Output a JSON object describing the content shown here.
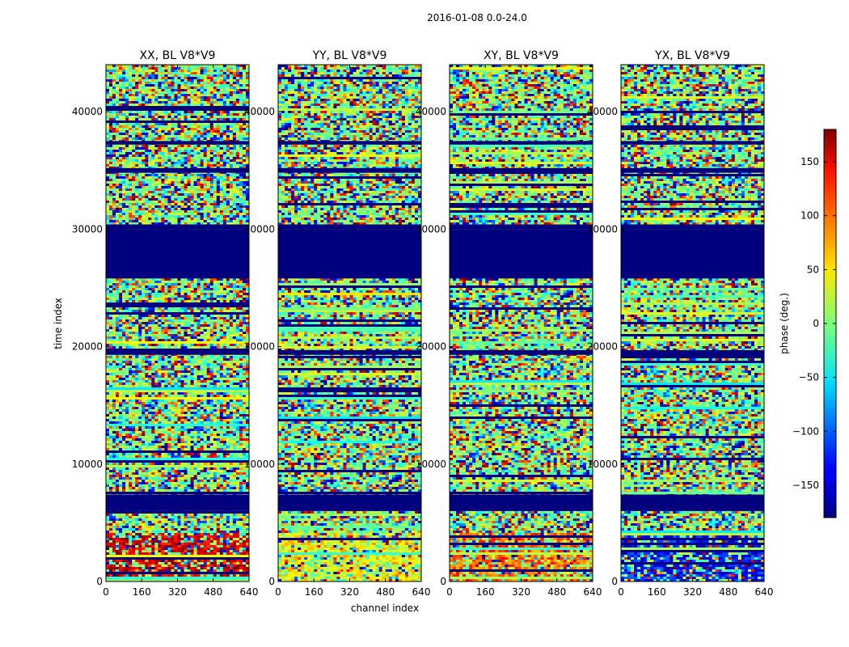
{
  "chart_data": {
    "type": "heatmap",
    "suptitle": "2016-01-08 0.0-24.0",
    "xlabel": "channel index",
    "ylabel": "time index",
    "x_range": [
      0,
      640
    ],
    "y_range": [
      0,
      44000
    ],
    "x_ticks": [
      0,
      160,
      320,
      480,
      640
    ],
    "y_ticks": [
      0,
      10000,
      20000,
      30000,
      40000
    ],
    "colormap": "jet",
    "panels": [
      {
        "title": "XX, BL V8*V9",
        "low_band_phase": 150
      },
      {
        "title": "YY, BL V8*V9",
        "low_band_phase": 45
      },
      {
        "title": "XY, BL V8*V9",
        "low_band_phase": 100
      },
      {
        "title": "YX, BL V8*V9",
        "low_band_phase": -130
      }
    ],
    "flagged_time_ranges": [
      [
        26000,
        30000
      ],
      [
        6000,
        7400
      ],
      [
        34800,
        35200
      ],
      [
        30000,
        30400
      ],
      [
        19300,
        19700
      ],
      [
        25800,
        26100
      ],
      [
        37200,
        37500
      ]
    ],
    "colorbar": {
      "label": "phase (deg.)",
      "range": [
        -180,
        180
      ],
      "ticks": [
        150,
        100,
        50,
        0,
        -50,
        -100,
        -150
      ],
      "tick_labels": [
        "150",
        "100",
        "50",
        "0",
        "−50",
        "−100",
        "−150"
      ]
    }
  }
}
